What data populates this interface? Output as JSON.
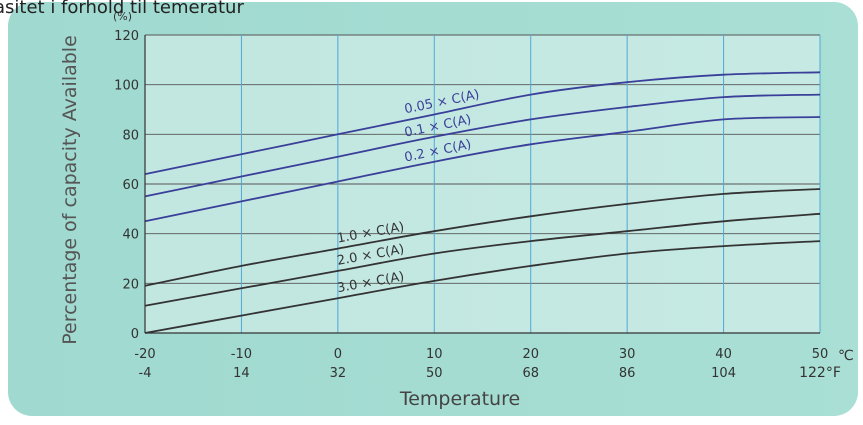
{
  "header_text": "asitet i forhold til temeratur",
  "chart_data": {
    "type": "line",
    "title": "",
    "ylabel": "Percentage of capacity Available",
    "xlabel": "Temperature",
    "y_unit": "(%)",
    "x_unit_c": "℃",
    "x_unit_f": "122°F",
    "ylim": [
      0,
      120
    ],
    "xlim": [
      -20,
      50
    ],
    "y_ticks": [
      0,
      20,
      40,
      60,
      80,
      100,
      120
    ],
    "x_ticks": [
      {
        "c": -20,
        "c_label": "-20",
        "f_label": "-4"
      },
      {
        "c": -10,
        "c_label": "-10",
        "f_label": "14"
      },
      {
        "c": 0,
        "c_label": "0",
        "f_label": "32"
      },
      {
        "c": 10,
        "c_label": "10",
        "f_label": "50"
      },
      {
        "c": 20,
        "c_label": "20",
        "f_label": "68"
      },
      {
        "c": 30,
        "c_label": "30",
        "f_label": "86"
      },
      {
        "c": 40,
        "c_label": "40",
        "f_label": "104"
      },
      {
        "c": 50,
        "c_label": "50",
        "f_label": ""
      }
    ],
    "grid": true,
    "x": [
      -20,
      -10,
      0,
      10,
      20,
      30,
      40,
      50
    ],
    "series": [
      {
        "name": "0.05 × C(A)",
        "color": "#3a3f9a",
        "values": [
          64,
          72,
          80,
          88,
          96,
          101,
          104,
          105
        ]
      },
      {
        "name": "0.1 × C(A)",
        "color": "#3a3f9a",
        "values": [
          55,
          63,
          71,
          79,
          86,
          91,
          95,
          96
        ]
      },
      {
        "name": "0.2 × C(A)",
        "color": "#3a3f9a",
        "values": [
          45,
          53,
          61,
          69,
          76,
          81,
          86,
          87
        ]
      },
      {
        "name": "1.0 × C(A)",
        "color": "#333333",
        "values": [
          19,
          27,
          34,
          41,
          47,
          52,
          56,
          58
        ]
      },
      {
        "name": "2.0 × C(A)",
        "color": "#333333",
        "values": [
          11,
          18,
          25,
          32,
          37,
          41,
          45,
          48
        ]
      },
      {
        "name": "3.0 × C(A)",
        "color": "#333333",
        "values": [
          0,
          7,
          14,
          21,
          27,
          32,
          35,
          37
        ]
      }
    ]
  }
}
